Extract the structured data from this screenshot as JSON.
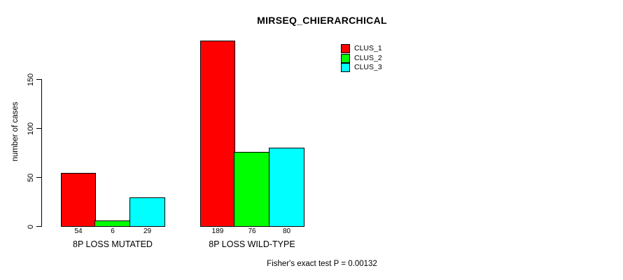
{
  "chart_data": {
    "type": "bar",
    "title": "MIRSEQ_CHIERARCHICAL",
    "ylabel": "number of cases",
    "xlabel": "",
    "footnote": "Fisher's exact test P = 0.00132",
    "categories": [
      "8P LOSS MUTATED",
      "8P LOSS WILD-TYPE"
    ],
    "series": [
      {
        "name": "CLUS_1",
        "color": "#ff0000",
        "values": [
          54,
          189
        ]
      },
      {
        "name": "CLUS_2",
        "color": "#00ff00",
        "values": [
          6,
          76
        ]
      },
      {
        "name": "CLUS_3",
        "color": "#00ffff",
        "values": [
          29,
          80
        ]
      }
    ],
    "yticks": [
      0,
      50,
      100,
      150
    ],
    "ylim": [
      0,
      195
    ],
    "grid": false,
    "legend_position": "top-right",
    "value_labels_below_bars": true,
    "axis_color": "#000000",
    "background_color": "#ffffff"
  }
}
